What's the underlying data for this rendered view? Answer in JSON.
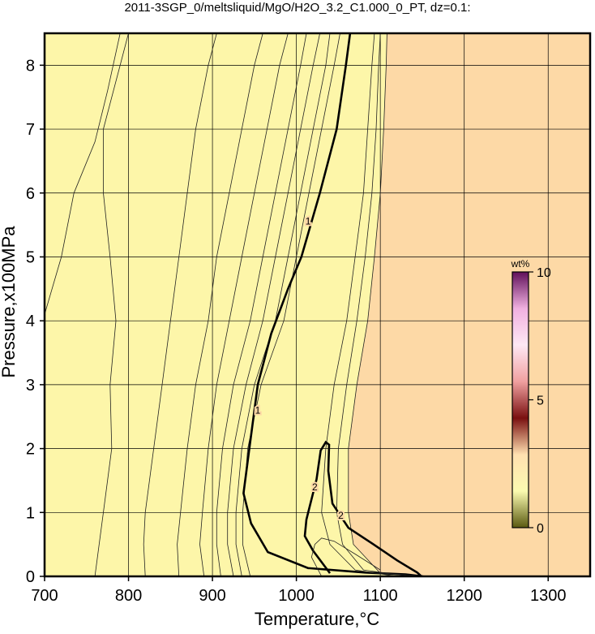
{
  "chart_data": {
    "type": "contour",
    "title": "2011-3SGP_0/meltsliquid/MgO/H2O_3.2_C1.000_0_PT, dz=0.1:",
    "x_label": "Temperature,°C",
    "y_label": "Pressure,x100MPa",
    "xlim": [
      700,
      1350
    ],
    "ylim": [
      0,
      8.5
    ],
    "xticks": [
      700,
      800,
      900,
      1000,
      1100,
      1200,
      1300
    ],
    "yticks": [
      0,
      1,
      2,
      3,
      4,
      5,
      6,
      7,
      8
    ],
    "grid": true,
    "low_color": "#fdf6a9",
    "high_color": "#fdd9a6",
    "line_color": "#222222",
    "contours": [
      {
        "x": [
          700,
          720,
          735,
          760,
          775,
          790
        ],
        "y": [
          4.1,
          5,
          6,
          6.8,
          7.6,
          8.5
        ]
      },
      {
        "x": [
          760,
          765,
          770,
          780,
          778,
          785,
          778,
          770,
          770,
          790,
          800
        ],
        "y": [
          0,
          0.5,
          1,
          2,
          3,
          4,
          5,
          6,
          7,
          8,
          8.5
        ]
      },
      {
        "x": [
          820,
          818,
          820,
          830,
          840,
          850,
          860,
          870,
          880,
          895,
          905
        ],
        "y": [
          0,
          0.5,
          1,
          2,
          3,
          4,
          5,
          6,
          7,
          8,
          8.5
        ]
      },
      {
        "x": [
          860,
          858,
          862,
          870,
          880,
          895,
          905,
          920,
          935,
          950,
          960
        ],
        "y": [
          0,
          0.5,
          1,
          2,
          3,
          4,
          5,
          6,
          7,
          8,
          8.5
        ]
      },
      {
        "x": [
          890,
          885,
          888,
          895,
          905,
          920,
          935,
          950,
          965,
          980,
          990
        ],
        "y": [
          0,
          0.5,
          1,
          2,
          3,
          4,
          5,
          6,
          7,
          8,
          8.5
        ]
      },
      {
        "x": [
          910,
          905,
          905,
          912,
          925,
          945,
          960,
          975,
          990,
          1005,
          1012
        ],
        "y": [
          0,
          0.5,
          1,
          2,
          3,
          4,
          5,
          6,
          7,
          8,
          8.5
        ]
      },
      {
        "x": [
          925,
          918,
          918,
          925,
          940,
          960,
          975,
          990,
          1005,
          1020,
          1028
        ],
        "y": [
          0,
          0.5,
          1,
          2,
          3,
          4,
          5,
          6,
          7,
          8,
          8.5
        ]
      },
      {
        "x": [
          935,
          928,
          928,
          935,
          950,
          975,
          990,
          1005,
          1020,
          1035,
          1040
        ],
        "y": [
          0,
          0.5,
          1,
          2,
          3,
          4,
          5,
          6,
          7,
          8,
          8.5
        ]
      },
      {
        "x": [
          945,
          936,
          936,
          942,
          958,
          985,
          1000,
          1015,
          1030,
          1045,
          1052
        ],
        "y": [
          0,
          0.5,
          1,
          2,
          3,
          4,
          5,
          6,
          7,
          8,
          8.5
        ]
      },
      {
        "level": 1,
        "bold": true,
        "label_at": [
          [
            1014,
            5.56
          ],
          [
            954,
            2.6
          ]
        ],
        "x": [
          1151,
          1130,
          1082,
          1014,
          966,
          946,
          937,
          944,
          954,
          970,
          990,
          1006,
          1028,
          1048,
          1059,
          1064
        ],
        "y": [
          0,
          0.03,
          0.06,
          0.13,
          0.38,
          0.83,
          1.3,
          2,
          3,
          3.8,
          4.5,
          5,
          6,
          7,
          8,
          8.5
        ]
      },
      {
        "x": [
          1120,
          1070,
          1040,
          1030,
          1035,
          1045,
          1060,
          1070,
          1080,
          1085,
          1090,
          1093
        ],
        "y": [
          0,
          0.1,
          0.5,
          1,
          2,
          3,
          4,
          5,
          6,
          7,
          8,
          8.5
        ]
      },
      {
        "x": [
          1135,
          1080,
          1055,
          1048,
          1050,
          1060,
          1072,
          1082,
          1090,
          1095,
          1098,
          1100
        ],
        "y": [
          0,
          0.1,
          0.5,
          1,
          2,
          3,
          4,
          5,
          6,
          7,
          8,
          8.5
        ]
      },
      {
        "x": [
          1160,
          1100,
          1068,
          1062,
          1062,
          1072,
          1085,
          1093,
          1100,
          1104,
          1107,
          1108
        ],
        "y": [
          0,
          0.05,
          0.5,
          1,
          2,
          3,
          4,
          5,
          6,
          7,
          8,
          8.5
        ]
      },
      {
        "level": 2,
        "bold": true,
        "label_at": [
          [
            1022,
            1.4
          ],
          [
            1053,
            0.95
          ]
        ],
        "x": [
          1040,
          1020,
          1010,
          1012,
          1024,
          1029,
          1035,
          1039,
          1038,
          1043,
          1062,
          1091,
          1120,
          1144,
          1149
        ],
        "y": [
          0.05,
          0.4,
          0.63,
          0.89,
          1.52,
          1.97,
          2.1,
          2.06,
          1.65,
          1.14,
          0.76,
          0.51,
          0.25,
          0.06,
          0
        ]
      },
      {
        "x": [
          1030,
          1018,
          1022,
          1030,
          1045,
          1070,
          1100
        ],
        "y": [
          0,
          0.3,
          0.5,
          0.6,
          0.55,
          0.35,
          0.1
        ]
      }
    ],
    "colorbar": {
      "label": "wt%",
      "lim": [
        0,
        10
      ],
      "ticks": [
        0,
        5,
        10
      ],
      "colors": [
        "#5a5a10",
        "#fbfbb0",
        "#ffe0b0",
        "#7a1010",
        "#f0a0a0",
        "#ffe8f4",
        "#f0b0e0",
        "#60105a"
      ]
    }
  }
}
